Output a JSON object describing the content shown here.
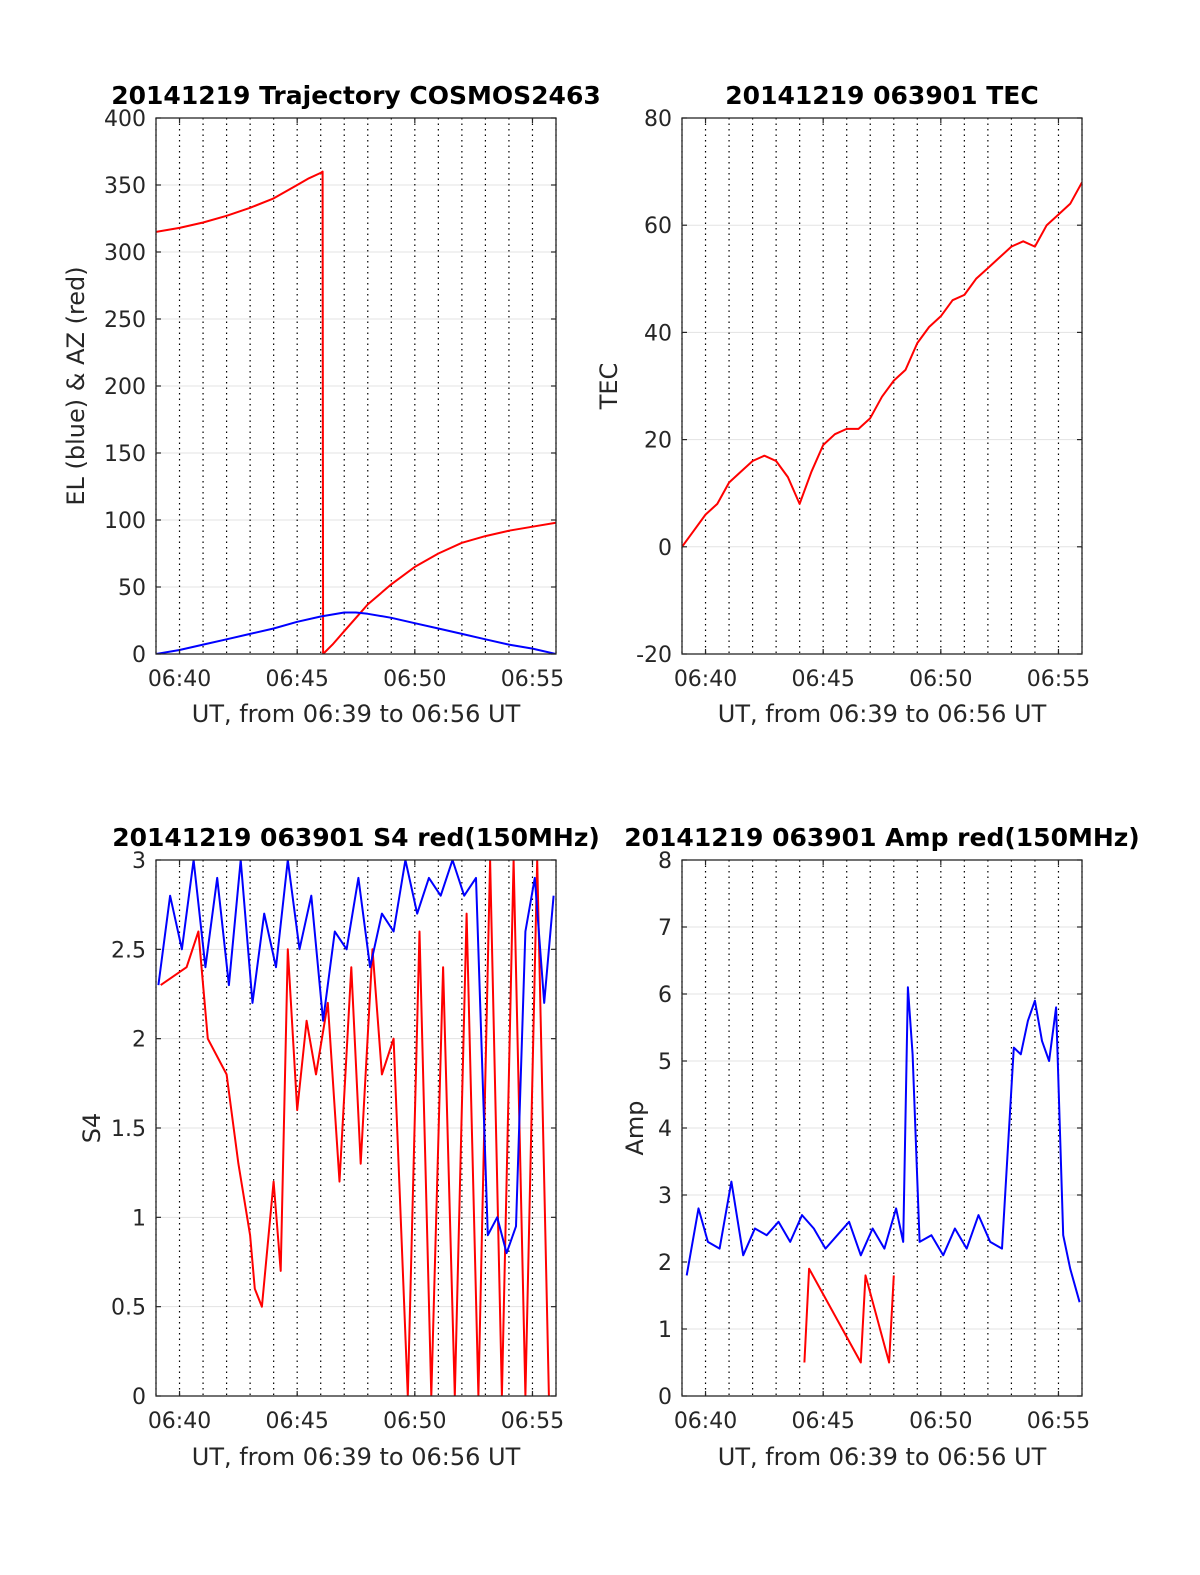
{
  "chart_data": [
    {
      "type": "line",
      "title": "20141219 Trajectory COSMOS2463",
      "xlabel": "UT, from 06:39 to 06:56 UT",
      "ylabel": "EL (blue) & AZ (red)",
      "xlim": [
        39,
        56
      ],
      "ylim": [
        0,
        400
      ],
      "xticks": [
        40,
        45,
        50,
        55
      ],
      "xtick_labels": [
        "06:40",
        "06:45",
        "06:50",
        "06:55"
      ],
      "yticks": [
        0,
        50,
        100,
        150,
        200,
        250,
        300,
        350,
        400
      ],
      "ytick_labels": [
        "0",
        "50",
        "100",
        "150",
        "200",
        "250",
        "300",
        "350",
        "400"
      ],
      "grid": true,
      "series": [
        {
          "color": "#ff0000",
          "x": [
            39,
            40,
            41,
            42,
            43,
            44,
            45,
            45.5,
            46.0,
            46.08,
            46.1,
            46.5,
            47,
            47.5,
            48,
            49,
            50,
            51,
            52,
            53,
            54,
            55,
            56
          ],
          "y": [
            315,
            318,
            322,
            327,
            333,
            340,
            350,
            355,
            359,
            360,
            0,
            7,
            17,
            27,
            37,
            52,
            65,
            75,
            83,
            88,
            92,
            95,
            98
          ]
        },
        {
          "color": "#0000ff",
          "x": [
            39,
            40,
            41,
            42,
            43,
            44,
            45,
            46,
            47,
            47.5,
            48,
            49,
            50,
            51,
            52,
            53,
            54,
            55,
            56
          ],
          "y": [
            0,
            3,
            7,
            11,
            15,
            19,
            24,
            28,
            31,
            31,
            30,
            27,
            23,
            19,
            15,
            11,
            7,
            4,
            0
          ]
        }
      ]
    },
    {
      "type": "line",
      "title": "20141219 063901 TEC",
      "xlabel": "UT, from 06:39 to 06:56 UT",
      "ylabel": "TEC",
      "xlim": [
        39,
        56
      ],
      "ylim": [
        -20,
        80
      ],
      "xticks": [
        40,
        45,
        50,
        55
      ],
      "xtick_labels": [
        "06:40",
        "06:45",
        "06:50",
        "06:55"
      ],
      "yticks": [
        -20,
        0,
        20,
        40,
        60,
        80
      ],
      "ytick_labels": [
        "-20",
        "0",
        "20",
        "40",
        "60",
        "80"
      ],
      "grid": true,
      "series": [
        {
          "color": "#ff0000",
          "x": [
            39,
            39.5,
            40,
            40.5,
            41,
            41.5,
            42,
            42.5,
            43,
            43.5,
            44,
            44.5,
            45,
            45.5,
            46,
            46.5,
            47,
            47.5,
            48,
            48.5,
            49,
            49.5,
            50,
            50.5,
            51,
            51.5,
            52,
            52.5,
            53,
            53.5,
            54,
            54.5,
            55,
            55.5,
            56
          ],
          "y": [
            0,
            3,
            6,
            8,
            12,
            14,
            16,
            17,
            16,
            13,
            8,
            14,
            19,
            21,
            22,
            22,
            24,
            28,
            31,
            33,
            38,
            41,
            43,
            46,
            47,
            50,
            52,
            54,
            56,
            57,
            56,
            60,
            62,
            64,
            68
          ]
        }
      ]
    },
    {
      "type": "line",
      "title": "20141219 063901 S4 red(150MHz)",
      "xlabel": "UT, from 06:39 to 06:56 UT",
      "ylabel": "S4",
      "xlim": [
        39,
        56
      ],
      "ylim": [
        0,
        3
      ],
      "xticks": [
        40,
        45,
        50,
        55
      ],
      "xtick_labels": [
        "06:40",
        "06:45",
        "06:50",
        "06:55"
      ],
      "yticks": [
        0,
        0.5,
        1,
        1.5,
        2,
        2.5,
        3
      ],
      "ytick_labels": [
        "0",
        "0.5",
        "1",
        "1.5",
        "2",
        "2.5",
        "3"
      ],
      "grid": true,
      "series": [
        {
          "color": "#ff0000",
          "x": [
            39.2,
            40.3,
            40.8,
            41.2,
            42.0,
            42.5,
            43.0,
            43.2,
            43.5,
            44.0,
            44.3,
            44.6,
            45.0,
            45.4,
            45.8,
            46.3,
            46.8,
            47.3,
            47.7,
            48.2,
            48.6,
            49.1,
            49.7,
            50.2,
            50.7,
            51.2,
            51.7,
            52.2,
            52.7,
            53.2,
            53.7,
            54.2,
            54.7,
            55.2,
            55.7
          ],
          "y": [
            2.3,
            2.4,
            2.6,
            2.0,
            1.8,
            1.3,
            0.9,
            0.6,
            0.5,
            1.2,
            0.7,
            2.5,
            1.6,
            2.1,
            1.8,
            2.2,
            1.2,
            2.4,
            1.3,
            2.5,
            1.8,
            2.0,
            0.0,
            2.6,
            0.0,
            2.4,
            0.0,
            2.7,
            0.0,
            3.0,
            0.0,
            3.0,
            0.0,
            3.0,
            0.0
          ]
        },
        {
          "color": "#0000ff",
          "x": [
            39.1,
            39.6,
            40.1,
            40.6,
            41.1,
            41.6,
            42.1,
            42.6,
            43.1,
            43.6,
            44.1,
            44.6,
            45.1,
            45.6,
            46.1,
            46.6,
            47.1,
            47.6,
            48.1,
            48.6,
            49.1,
            49.6,
            50.1,
            50.6,
            51.1,
            51.6,
            52.1,
            52.6,
            53.1,
            53.5,
            53.9,
            54.3,
            54.7,
            55.1,
            55.5,
            55.9
          ],
          "y": [
            2.3,
            2.8,
            2.5,
            3.0,
            2.4,
            2.9,
            2.3,
            3.0,
            2.2,
            2.7,
            2.4,
            3.0,
            2.5,
            2.8,
            2.1,
            2.6,
            2.5,
            2.9,
            2.4,
            2.7,
            2.6,
            3.0,
            2.7,
            2.9,
            2.8,
            3.0,
            2.8,
            2.9,
            0.9,
            1.0,
            0.8,
            0.95,
            2.6,
            2.9,
            2.2,
            2.8
          ]
        }
      ]
    },
    {
      "type": "line",
      "title": "20141219 063901 Amp red(150MHz)",
      "xlabel": "UT, from 06:39 to 06:56 UT",
      "ylabel": "Amp",
      "xlim": [
        39,
        56
      ],
      "ylim": [
        0,
        8
      ],
      "xticks": [
        40,
        45,
        50,
        55
      ],
      "xtick_labels": [
        "06:40",
        "06:45",
        "06:50",
        "06:55"
      ],
      "yticks": [
        0,
        1,
        2,
        3,
        4,
        5,
        6,
        7,
        8
      ],
      "ytick_labels": [
        "0",
        "1",
        "2",
        "3",
        "4",
        "5",
        "6",
        "7",
        "8"
      ],
      "grid": true,
      "series": [
        {
          "color": "#ff0000",
          "x": [
            44.2,
            44.4,
            46.6,
            46.8,
            47.8,
            48.0
          ],
          "y": [
            0.5,
            1.9,
            0.5,
            1.8,
            0.5,
            1.8
          ]
        },
        {
          "color": "#0000ff",
          "x": [
            39.2,
            39.7,
            40.1,
            40.6,
            41.1,
            41.6,
            42.1,
            42.6,
            43.1,
            43.6,
            44.1,
            44.6,
            45.1,
            45.6,
            46.1,
            46.6,
            47.1,
            47.6,
            48.1,
            48.4,
            48.6,
            48.8,
            49.1,
            49.6,
            50.1,
            50.6,
            51.1,
            51.6,
            52.1,
            52.6,
            53.1,
            53.4,
            53.7,
            54.0,
            54.3,
            54.6,
            54.9,
            55.2,
            55.5,
            55.9
          ],
          "y": [
            1.8,
            2.8,
            2.3,
            2.2,
            3.2,
            2.1,
            2.5,
            2.4,
            2.6,
            2.3,
            2.7,
            2.5,
            2.2,
            2.4,
            2.6,
            2.1,
            2.5,
            2.2,
            2.8,
            2.3,
            6.1,
            5.1,
            2.3,
            2.4,
            2.1,
            2.5,
            2.2,
            2.7,
            2.3,
            2.2,
            5.2,
            5.1,
            5.6,
            5.9,
            5.3,
            5.0,
            5.8,
            2.4,
            1.9,
            1.4
          ]
        }
      ]
    }
  ]
}
